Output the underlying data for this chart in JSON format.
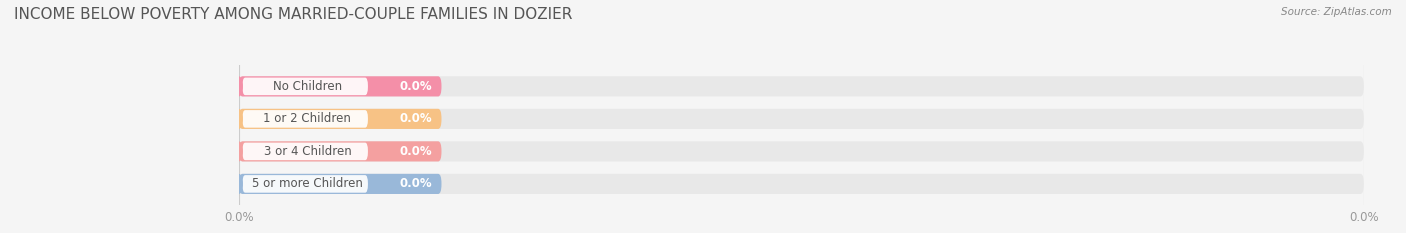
{
  "title": "INCOME BELOW POVERTY AMONG MARRIED-COUPLE FAMILIES IN DOZIER",
  "source": "Source: ZipAtlas.com",
  "categories": [
    "No Children",
    "1 or 2 Children",
    "3 or 4 Children",
    "5 or more Children"
  ],
  "values": [
    0.0,
    0.0,
    0.0,
    0.0
  ],
  "bar_colors": [
    "#f48fa8",
    "#f7c285",
    "#f4a0a0",
    "#99b8d9"
  ],
  "bar_bg_color": "#e8e8e8",
  "label_bg_color": "#f5f5f5",
  "background_color": "#f5f5f5",
  "title_fontsize": 11,
  "label_fontsize": 8.5,
  "value_fontsize": 8.5,
  "source_fontsize": 7.5,
  "title_color": "#555555",
  "label_color": "#555555",
  "source_color": "#888888",
  "tick_color": "#999999",
  "gridline_color": "#cccccc"
}
